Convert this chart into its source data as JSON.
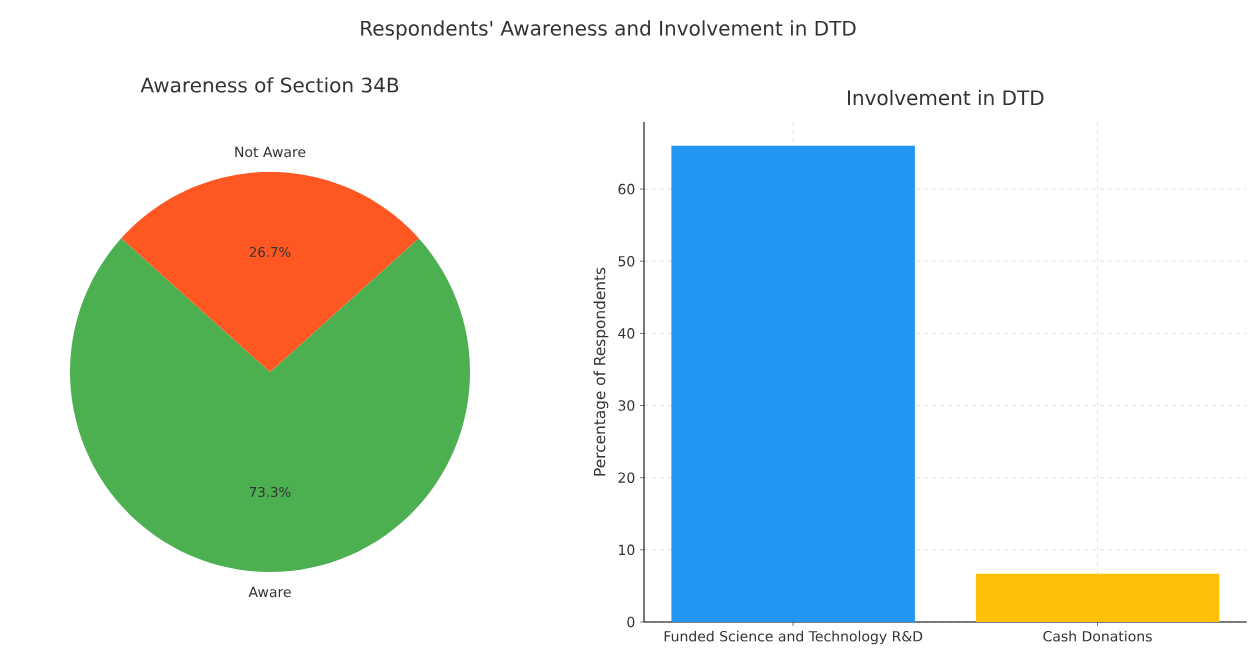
{
  "chart_data": [
    {
      "type": "other",
      "title": "Respondents' Awareness and Involvement in DTD"
    },
    {
      "type": "pie",
      "title": "Awareness of Section 34B",
      "categories": [
        "Aware",
        "Not Aware"
      ],
      "values": [
        73.3,
        26.7
      ],
      "colors": [
        "#4caf50",
        "#ff5722"
      ],
      "value_labels": [
        "73.3%",
        "26.7%"
      ]
    },
    {
      "type": "bar",
      "title": "Involvement in DTD",
      "ylabel": "Percentage of Respondents",
      "categories": [
        "Funded Science and Technology R&D",
        "Cash Donations"
      ],
      "values": [
        66.0,
        6.7
      ],
      "colors": [
        "#2196f3",
        "#ffc107"
      ],
      "ylim": [
        0,
        69.3
      ],
      "yticks": [
        0,
        10,
        20,
        30,
        40,
        50,
        60
      ],
      "grid": true
    }
  ]
}
